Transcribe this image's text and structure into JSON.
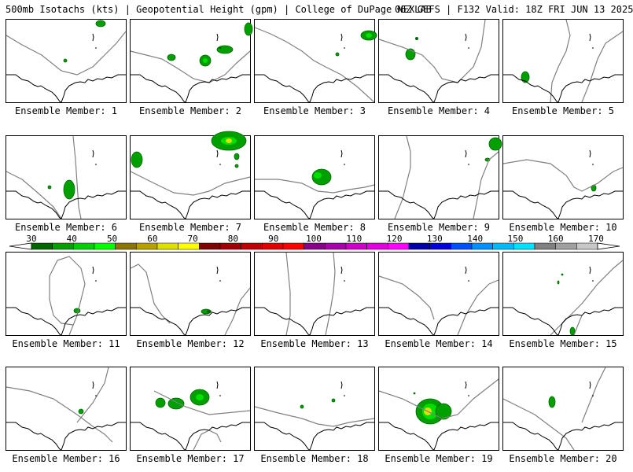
{
  "header": {
    "left_title": "500mb Isotachs (kts) | Geopotential Height (gpm) | College of DuPage NEXLAB",
    "right_title": "06Z GEFS | F132 Valid: 18Z FRI JUN 13 2025"
  },
  "member_label_prefix": "Ensemble Member: ",
  "members": [
    1,
    2,
    3,
    4,
    5,
    6,
    7,
    8,
    9,
    10,
    11,
    12,
    13,
    14,
    15,
    16,
    17,
    18,
    19,
    20
  ],
  "colorbar": {
    "labels": [
      "30",
      "40",
      "50",
      "60",
      "70",
      "80",
      "90",
      "100",
      "110",
      "120",
      "130",
      "140",
      "150",
      "160",
      "170"
    ],
    "colors": [
      "#006400",
      "#00a000",
      "#00d000",
      "#00ff00",
      "#8b7500",
      "#b8a000",
      "#e0e000",
      "#ffff00",
      "#800000",
      "#a00000",
      "#c00000",
      "#e00000",
      "#ff0000",
      "#880088",
      "#aa00aa",
      "#cc00cc",
      "#e000e0",
      "#ff00ff",
      "#0000aa",
      "#0000dd",
      "#0050ff",
      "#0090ff",
      "#00b8ff",
      "#00e0ff",
      "#808080",
      "#a0a0a0",
      "#c8c8c8"
    ]
  },
  "colors": {
    "coastline": "#000000",
    "height_contour": "#808080",
    "isotach_fill": "#00a000",
    "isotach_core": "#00ff00",
    "isotach_peak": "#e0e000"
  }
}
